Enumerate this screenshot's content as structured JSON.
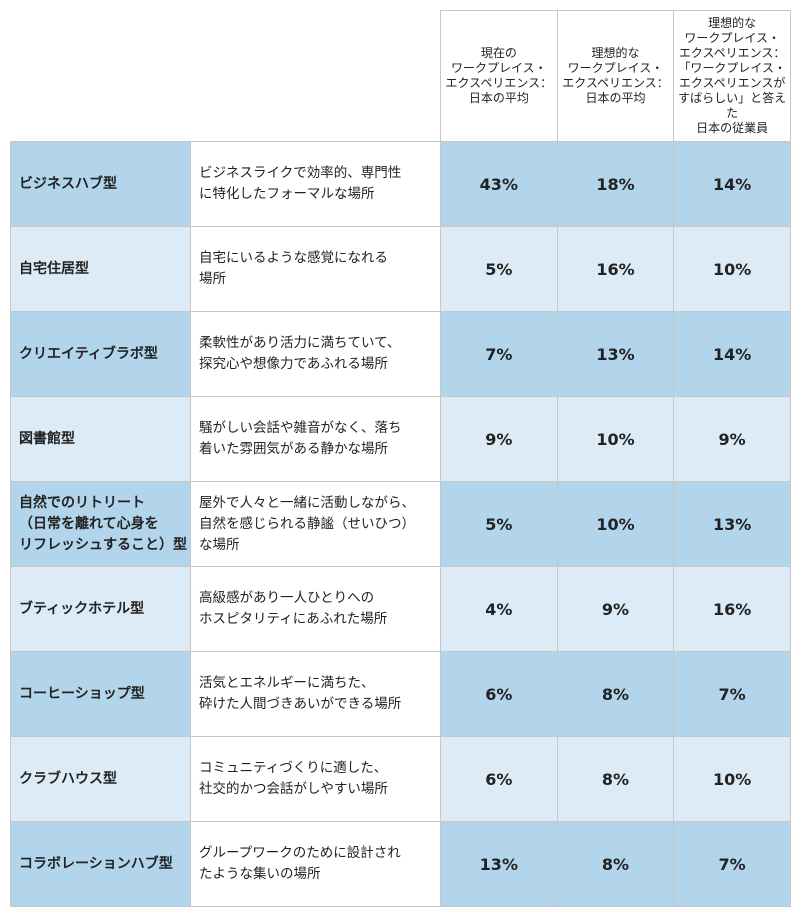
{
  "headers": [
    [
      "現在の",
      "ワークプレイス・",
      "エクスペリエンス：",
      "日本の平均"
    ],
    [
      "理想的な",
      "ワークプレイス・",
      "エクスペリエンス：",
      "日本の平均"
    ],
    [
      "理想的な",
      "ワークプレイス・",
      "エクスペリエンス：",
      "「ワークプレイス・",
      "エクスペリエンスが",
      "すばらしい」と答えた",
      "日本の従業員"
    ]
  ],
  "rows": [
    {
      "type": [
        "ビジネスハブ型"
      ],
      "desc": [
        "ビジネスライクで効率的、専門性",
        "に特化したフォーマルな場所"
      ],
      "values": [
        "43%",
        "18%",
        "14%"
      ]
    },
    {
      "type": [
        "自宅住居型"
      ],
      "desc": [
        "自宅にいるような感覚になれる",
        "場所"
      ],
      "values": [
        "5%",
        "16%",
        "10%"
      ]
    },
    {
      "type": [
        "クリエイティブラボ型"
      ],
      "desc": [
        "柔軟性があり活力に満ちていて、",
        "探究心や想像力であふれる場所"
      ],
      "values": [
        "7%",
        "13%",
        "14%"
      ]
    },
    {
      "type": [
        "図書館型"
      ],
      "desc": [
        "騒がしい会話や雑音がなく、落ち",
        "着いた雰囲気がある静かな場所"
      ],
      "values": [
        "9%",
        "10%",
        "9%"
      ]
    },
    {
      "type": [
        "自然でのリトリート",
        "（日常を離れて心身を",
        "リフレッシュすること）型"
      ],
      "desc": [
        "屋外で人々と一緒に活動しながら、",
        "自然を感じられる静謐（せいひつ）",
        "な場所"
      ],
      "values": [
        "5%",
        "10%",
        "13%"
      ]
    },
    {
      "type": [
        "ブティックホテル型"
      ],
      "desc": [
        "高級感があり一人ひとりへの",
        "ホスピタリティにあふれた場所"
      ],
      "values": [
        "4%",
        "9%",
        "16%"
      ]
    },
    {
      "type": [
        "コーヒーショップ型"
      ],
      "desc": [
        "活気とエネルギーに満ちた、",
        "砕けた人間づきあいができる場所"
      ],
      "values": [
        "6%",
        "8%",
        "7%"
      ]
    },
    {
      "type": [
        "クラブハウス型"
      ],
      "desc": [
        "コミュニティづくりに適した、",
        "社交的かつ会話がしやすい場所"
      ],
      "values": [
        "6%",
        "8%",
        "10%"
      ]
    },
    {
      "type": [
        "コラボレーションハブ型"
      ],
      "desc": [
        "グループワークのために設計され",
        "たような集いの場所"
      ],
      "values": [
        "13%",
        "8%",
        "7%"
      ]
    }
  ],
  "colors": {
    "row_dark": "#b2d5ec",
    "row_light": "#dcebf6",
    "border": "#c7c7c7"
  }
}
